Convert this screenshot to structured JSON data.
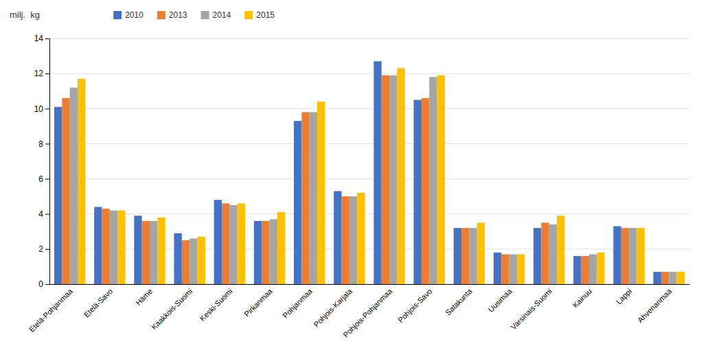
{
  "chart_data": {
    "type": "bar",
    "ylabel": "milj.  kg",
    "categories": [
      "Etelä-Pohjanmaa",
      "Etelä-Savo",
      "Häme",
      "Kaakkois-Suomi",
      "Keski-Suomi",
      "Pirkanmaa",
      "Pohjanmaa",
      "Pohjois-Karjala",
      "Pohjois-Pohjanmaa",
      "Pohjois-Savo",
      "Satakunta",
      "Uusimaa",
      "Varsinais-Suomi",
      "Kainuu",
      "Lappi",
      "Ahvenanmaa"
    ],
    "series": [
      {
        "name": "2010",
        "color": "#4472C4",
        "values": [
          10.1,
          4.4,
          3.9,
          2.9,
          4.8,
          3.6,
          9.3,
          5.3,
          12.7,
          10.5,
          3.2,
          1.8,
          3.2,
          1.6,
          3.3,
          0.7
        ]
      },
      {
        "name": "2013",
        "color": "#ED7D31",
        "values": [
          10.6,
          4.3,
          3.6,
          2.5,
          4.6,
          3.6,
          9.8,
          5.0,
          11.9,
          10.6,
          3.2,
          1.7,
          3.5,
          1.6,
          3.2,
          0.7
        ]
      },
      {
        "name": "2014",
        "color": "#A5A5A5",
        "values": [
          11.2,
          4.2,
          3.6,
          2.6,
          4.5,
          3.7,
          9.8,
          5.0,
          11.9,
          11.8,
          3.2,
          1.7,
          3.4,
          1.7,
          3.2,
          0.7
        ]
      },
      {
        "name": "2015",
        "color": "#FFC000",
        "values": [
          11.7,
          4.2,
          3.8,
          2.7,
          4.6,
          4.1,
          10.4,
          5.2,
          12.3,
          11.9,
          3.5,
          1.7,
          3.9,
          1.8,
          3.2,
          0.7
        ]
      }
    ],
    "ylim": [
      0,
      14
    ],
    "yticks": [
      0,
      2,
      4,
      6,
      8,
      10,
      12,
      14
    ],
    "grid": true,
    "legend": "top-left"
  }
}
